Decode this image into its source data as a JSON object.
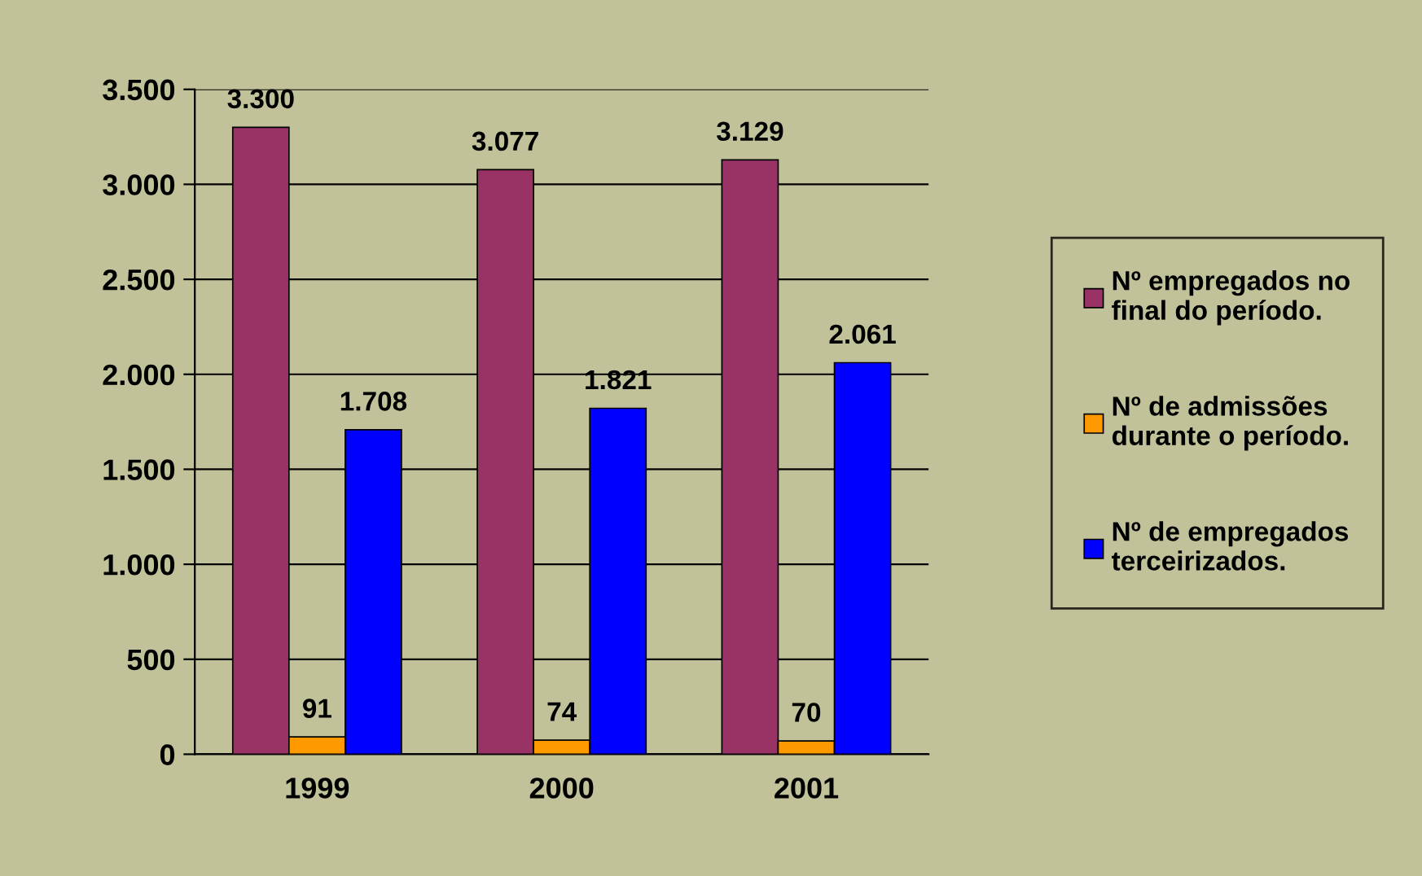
{
  "chart_data": {
    "type": "bar",
    "categories": [
      "1999",
      "2000",
      "2001"
    ],
    "series": [
      {
        "name": "Nº empregados no\nfinal do período.",
        "color": "#993366",
        "values": [
          3300,
          3077,
          3129
        ],
        "value_labels": [
          "3.300",
          "3.077",
          "3.129"
        ]
      },
      {
        "name": "Nº de admissões\ndurante o período.",
        "color": "#ff9900",
        "values": [
          91,
          74,
          70
        ],
        "value_labels": [
          "91",
          "74",
          "70"
        ]
      },
      {
        "name": "Nº de empregados\nterceirizados.",
        "color": "#0000ff",
        "values": [
          1708,
          1821,
          2061
        ],
        "value_labels": [
          "1.708",
          "1.821",
          "2.061"
        ]
      }
    ],
    "ylim": [
      0,
      3500
    ],
    "yticks": [
      0,
      {
        "value": 500,
        "label": "500"
      },
      {
        "value": 1000,
        "label": "1.000"
      },
      {
        "value": 1500,
        "label": "1.500"
      },
      {
        "value": 2000,
        "label": "2.000"
      },
      {
        "value": 2500,
        "label": "2.500"
      },
      {
        "value": 3000,
        "label": "3.000"
      },
      {
        "value": 3500,
        "label": "3.500"
      }
    ],
    "grid": "y",
    "legend": "right"
  }
}
